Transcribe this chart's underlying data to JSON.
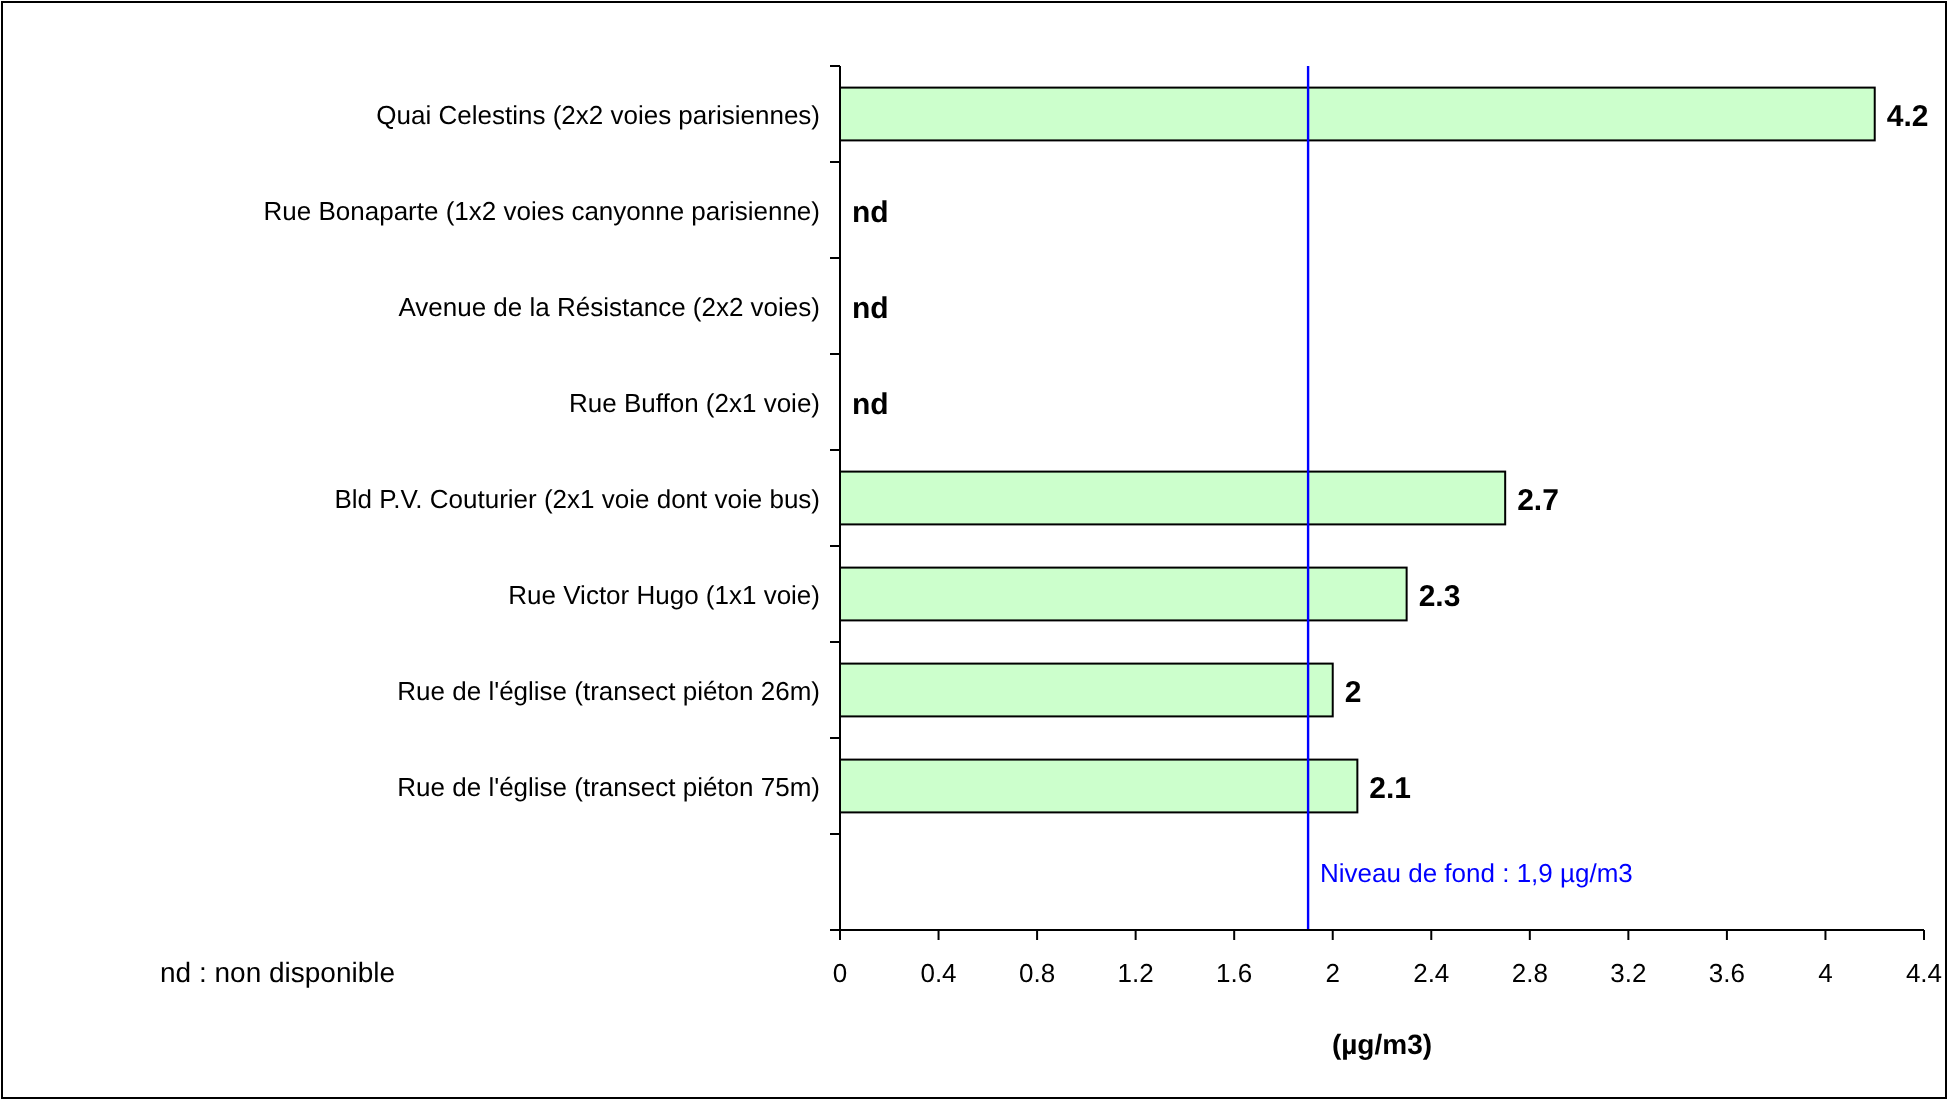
{
  "chart_data": {
    "type": "bar",
    "orientation": "horizontal",
    "categories": [
      "Quai Celestins (2x2 voies parisiennes)",
      "Rue Bonaparte (1x2 voies canyonne parisienne)",
      "Avenue de la Résistance (2x2 voies)",
      "Rue Buffon (2x1 voie)",
      "Bld P.V. Couturier (2x1 voie dont voie bus)",
      "Rue Victor Hugo (1x1 voie)",
      "Rue de l'église (transect piéton 26m)",
      "Rue de l'église (transect piéton 75m)",
      null
    ],
    "values": [
      4.2,
      null,
      null,
      null,
      2.7,
      2.3,
      2,
      2.1,
      null
    ],
    "value_labels": [
      "4.2",
      "nd",
      "nd",
      "nd",
      "2.7",
      "2.3",
      "2",
      "2.1",
      null
    ],
    "color": "#ccffcc",
    "xlim": [
      0,
      4.4
    ],
    "xticks": [
      0,
      0.4,
      0.8,
      1.2,
      1.6,
      2,
      2.4,
      2.8,
      3.2,
      3.6,
      4,
      4.4
    ],
    "xlabel": "(µg/m3)",
    "ref_lines": [
      {
        "axis": "x",
        "value": 1.9,
        "label": "Niveau de fond : 1,9 µg/m3",
        "color": "#0000ff"
      }
    ],
    "annotations": [
      "nd : non disponible"
    ],
    "grid": false
  }
}
